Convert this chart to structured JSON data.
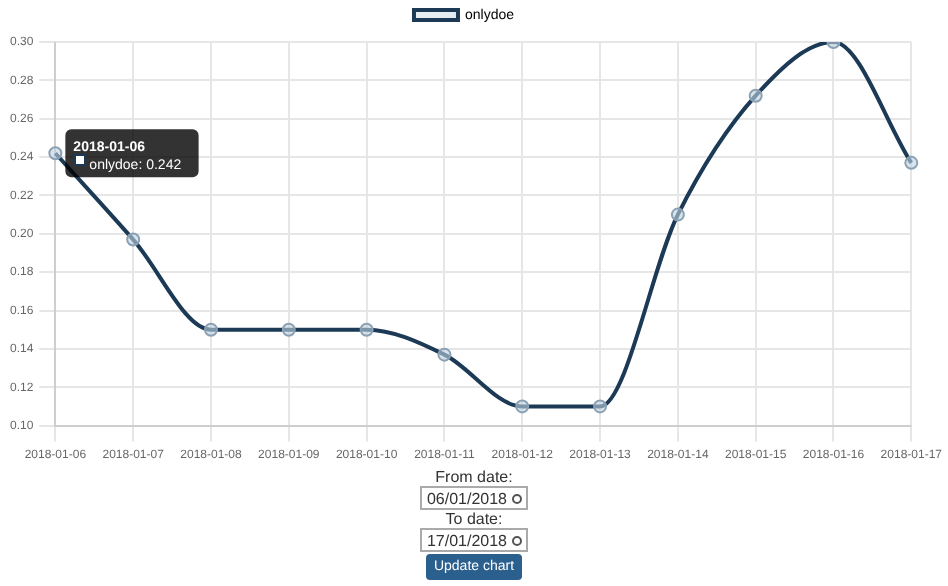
{
  "chart_data": {
    "type": "line",
    "categories": [
      "2018-01-06",
      "2018-01-07",
      "2018-01-08",
      "2018-01-09",
      "2018-01-10",
      "2018-01-11",
      "2018-01-12",
      "2018-01-13",
      "2018-01-14",
      "2018-01-15",
      "2018-01-16",
      "2018-01-17"
    ],
    "series": [
      {
        "name": "onlydoe",
        "color": "#1c3a55",
        "values": [
          0.242,
          0.197,
          0.15,
          0.15,
          0.15,
          0.137,
          0.11,
          0.11,
          0.21,
          0.272,
          0.3,
          0.237
        ]
      }
    ],
    "ylim": [
      0.1,
      0.3
    ],
    "yticks": [
      {
        "value": 0.1,
        "label": "0.10"
      },
      {
        "value": 0.12,
        "label": "0.12"
      },
      {
        "value": 0.14,
        "label": "0.14"
      },
      {
        "value": 0.16,
        "label": "0.16"
      },
      {
        "value": 0.18,
        "label": "0.18"
      },
      {
        "value": 0.2,
        "label": "0.20"
      },
      {
        "value": 0.22,
        "label": "0.22"
      },
      {
        "value": 0.24,
        "label": "0.24"
      },
      {
        "value": 0.26,
        "label": "0.26"
      },
      {
        "value": 0.28,
        "label": "0.28"
      },
      {
        "value": 0.3,
        "label": "0.30"
      }
    ],
    "grid": true,
    "legend": "top",
    "marker": "circle",
    "line_style": "solid",
    "annotations": [
      {
        "text": "2018-01-06",
        "x": "2018-01-06",
        "y": 0.242
      },
      {
        "text": "onlydoe: 0.242",
        "x": "2018-01-06",
        "y": 0.242
      },
      "From date:",
      "06/01/2018",
      "To date:",
      "17/01/2018",
      "Update chart"
    ]
  }
}
